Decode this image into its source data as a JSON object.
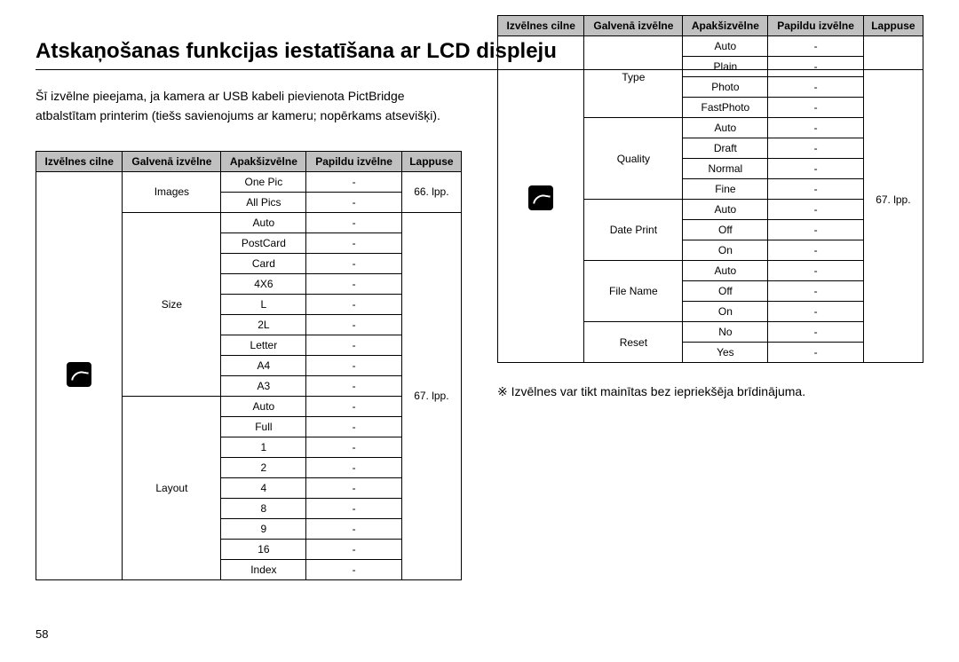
{
  "title": "Atskaņošanas funkcijas iestatīšana ar LCD displeju",
  "intro_line1": "Šī izvēlne pieejama, ja kamera ar USB kabeli pievienota PictBridge",
  "intro_line2": "atbalstītam printerim (tiešs savienojums ar kameru; nopērkams atsevišķi).",
  "headers": {
    "c1": "Izvēlnes cilne",
    "c2": "Galvenā izvēlne",
    "c3": "Apakšizvēlne",
    "c4": "Papildu izvēlne",
    "c5": "Lappuse"
  },
  "left_table": {
    "groups": [
      {
        "main": "Images",
        "subs": [
          "One Pic",
          "All Pics"
        ],
        "page": "66. lpp."
      },
      {
        "main": "Size",
        "subs": [
          "Auto",
          "PostCard",
          "Card",
          "4X6",
          "L",
          "2L",
          "Letter",
          "A4",
          "A3"
        ],
        "page": "67. lpp."
      },
      {
        "main": "Layout",
        "subs": [
          "Auto",
          "Full",
          "1",
          "2",
          "4",
          "8",
          "9",
          "16",
          "Index"
        ],
        "page_shared_with_prev": true
      }
    ],
    "dash": "-"
  },
  "right_table": {
    "groups": [
      {
        "main": "Type",
        "subs": [
          "Auto",
          "Plain",
          "Photo",
          "FastPhoto"
        ]
      },
      {
        "main": "Quality",
        "subs": [
          "Auto",
          "Draft",
          "Normal",
          "Fine"
        ]
      },
      {
        "main": "Date Print",
        "subs": [
          "Auto",
          "Off",
          "On"
        ]
      },
      {
        "main": "File Name",
        "subs": [
          "Auto",
          "Off",
          "On"
        ]
      },
      {
        "main": "Reset",
        "subs": [
          "No",
          "Yes"
        ]
      }
    ],
    "page": "67. lpp.",
    "dash": "-"
  },
  "note": "※  Izvēlnes var tikt mainītas bez iepriekšēja brīdinājuma.",
  "page_number": "58"
}
